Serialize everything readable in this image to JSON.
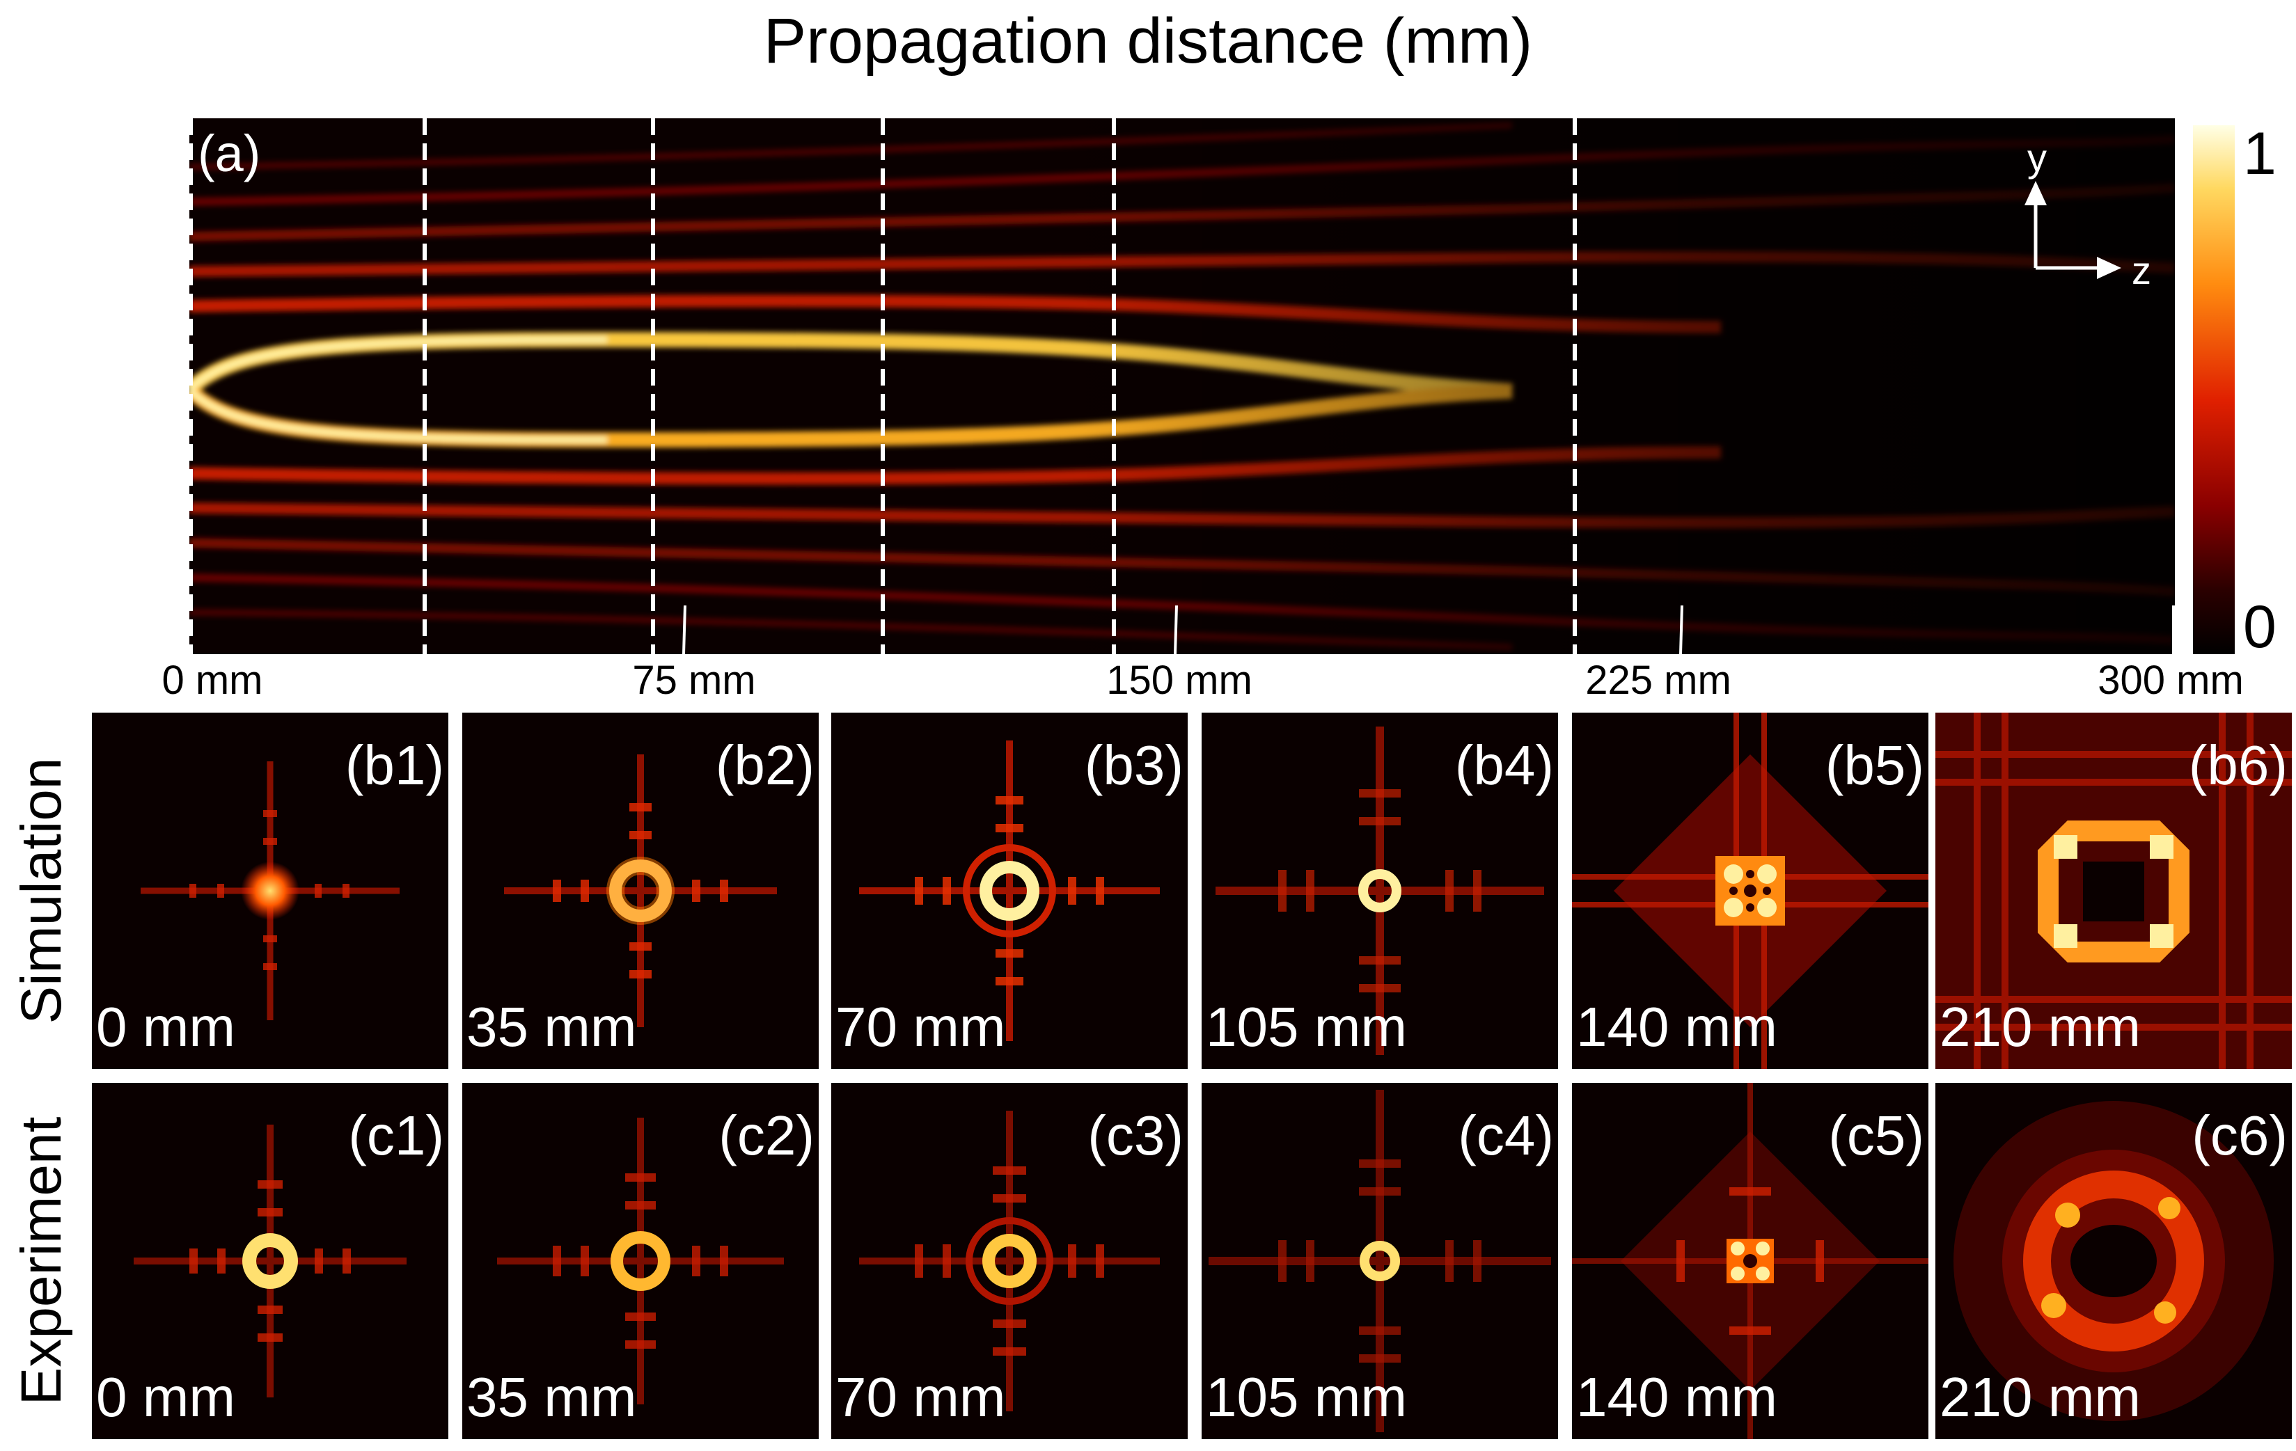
{
  "title": "Propagation distance (mm)",
  "panel_a": {
    "label": "(a)",
    "axis_y": "y",
    "axis_z": "z",
    "x_ticks": [
      "0 mm",
      "75 mm",
      "150 mm",
      "225 mm",
      "300 mm"
    ],
    "colorbar": {
      "max_label": "1",
      "min_label": "0"
    }
  },
  "rows": {
    "simulation": "Simulation",
    "experiment": "Experiment"
  },
  "simulation_tiles": [
    {
      "label": "(b1)",
      "distance": "0 mm"
    },
    {
      "label": "(b2)",
      "distance": "35 mm"
    },
    {
      "label": "(b3)",
      "distance": "70 mm"
    },
    {
      "label": "(b4)",
      "distance": "105 mm"
    },
    {
      "label": "(b5)",
      "distance": "140 mm"
    },
    {
      "label": "(b6)",
      "distance": "210 mm"
    }
  ],
  "experiment_tiles": [
    {
      "label": "(c1)",
      "distance": "0 mm"
    },
    {
      "label": "(c2)",
      "distance": "35 mm"
    },
    {
      "label": "(c3)",
      "distance": "70 mm"
    },
    {
      "label": "(c4)",
      "distance": "105 mm"
    },
    {
      "label": "(c5)",
      "distance": "140 mm"
    },
    {
      "label": "(c6)",
      "distance": "210 mm"
    }
  ]
}
